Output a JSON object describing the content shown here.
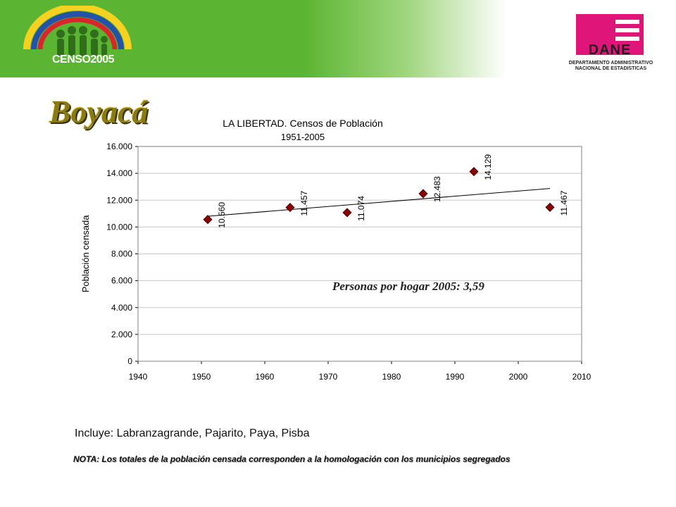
{
  "header": {
    "censo_logo_text": "CENSO2005",
    "dane_name": "DANE",
    "dane_subtitle_line1": "DEPARTAMENTO ADMINISTRATIVO",
    "dane_subtitle_line2": "NACIONAL DE ESTADISTICAS",
    "colors": {
      "green": "#5cb532",
      "dane_pink": "#e0157a"
    }
  },
  "region_title": "Boyacá",
  "chart_data": {
    "type": "scatter",
    "title": "LA LIBERTAD. Censos de Población",
    "subtitle": "1951-2005",
    "xlabel": "",
    "ylabel": "Población censada",
    "xlim": [
      1940,
      2010
    ],
    "ylim": [
      0,
      16000
    ],
    "x_ticks": [
      "1940",
      "1950",
      "1960",
      "1970",
      "1980",
      "1990",
      "2000",
      "2010"
    ],
    "y_ticks": [
      "0",
      "2.000",
      "4.000",
      "6.000",
      "8.000",
      "10.000",
      "12.000",
      "14.000",
      "16.000"
    ],
    "grid": "horizontal",
    "series": [
      {
        "x": [
          1951,
          1964,
          1973,
          1985,
          1993,
          2005
        ],
        "values": [
          10560,
          11457,
          11074,
          12483,
          14129,
          11467
        ],
        "labels": [
          "10.560",
          "11.457",
          "11.074",
          "12.483",
          "14.129",
          "11.467"
        ],
        "marker_color": "#8b0000"
      }
    ],
    "trendline": {
      "x": [
        1951,
        2005
      ],
      "y": [
        10800,
        12870
      ]
    },
    "annotation": "Personas por hogar 2005: 3,59"
  },
  "footnote": "Incluye: Labranzagrande, Pajarito, Paya, Pisba",
  "note": "NOTA: Los totales de la población censada corresponden a la homologación con los municipios segregados"
}
